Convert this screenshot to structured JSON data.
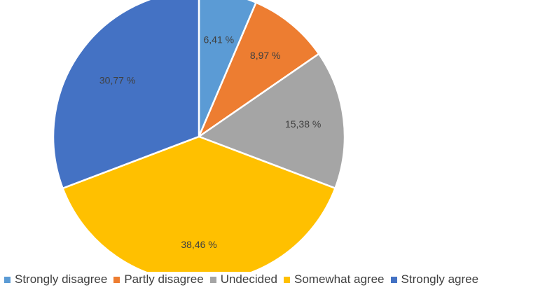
{
  "chart_data": {
    "type": "pie",
    "title": "",
    "categories": [
      "Strongly disagree",
      "Partly disagree",
      "Undecided",
      "Somewhat agree",
      "Strongly agree"
    ],
    "values": [
      6.41,
      8.97,
      15.38,
      38.46,
      30.77
    ],
    "labels": [
      "6,41 %",
      "8,97 %",
      "15,38 %",
      "38,46 %",
      "30,77 %"
    ],
    "colors": [
      "#5B9BD5",
      "#ED7D31",
      "#A5A5A5",
      "#FFC000",
      "#4472C4"
    ],
    "legend": "bottom"
  }
}
